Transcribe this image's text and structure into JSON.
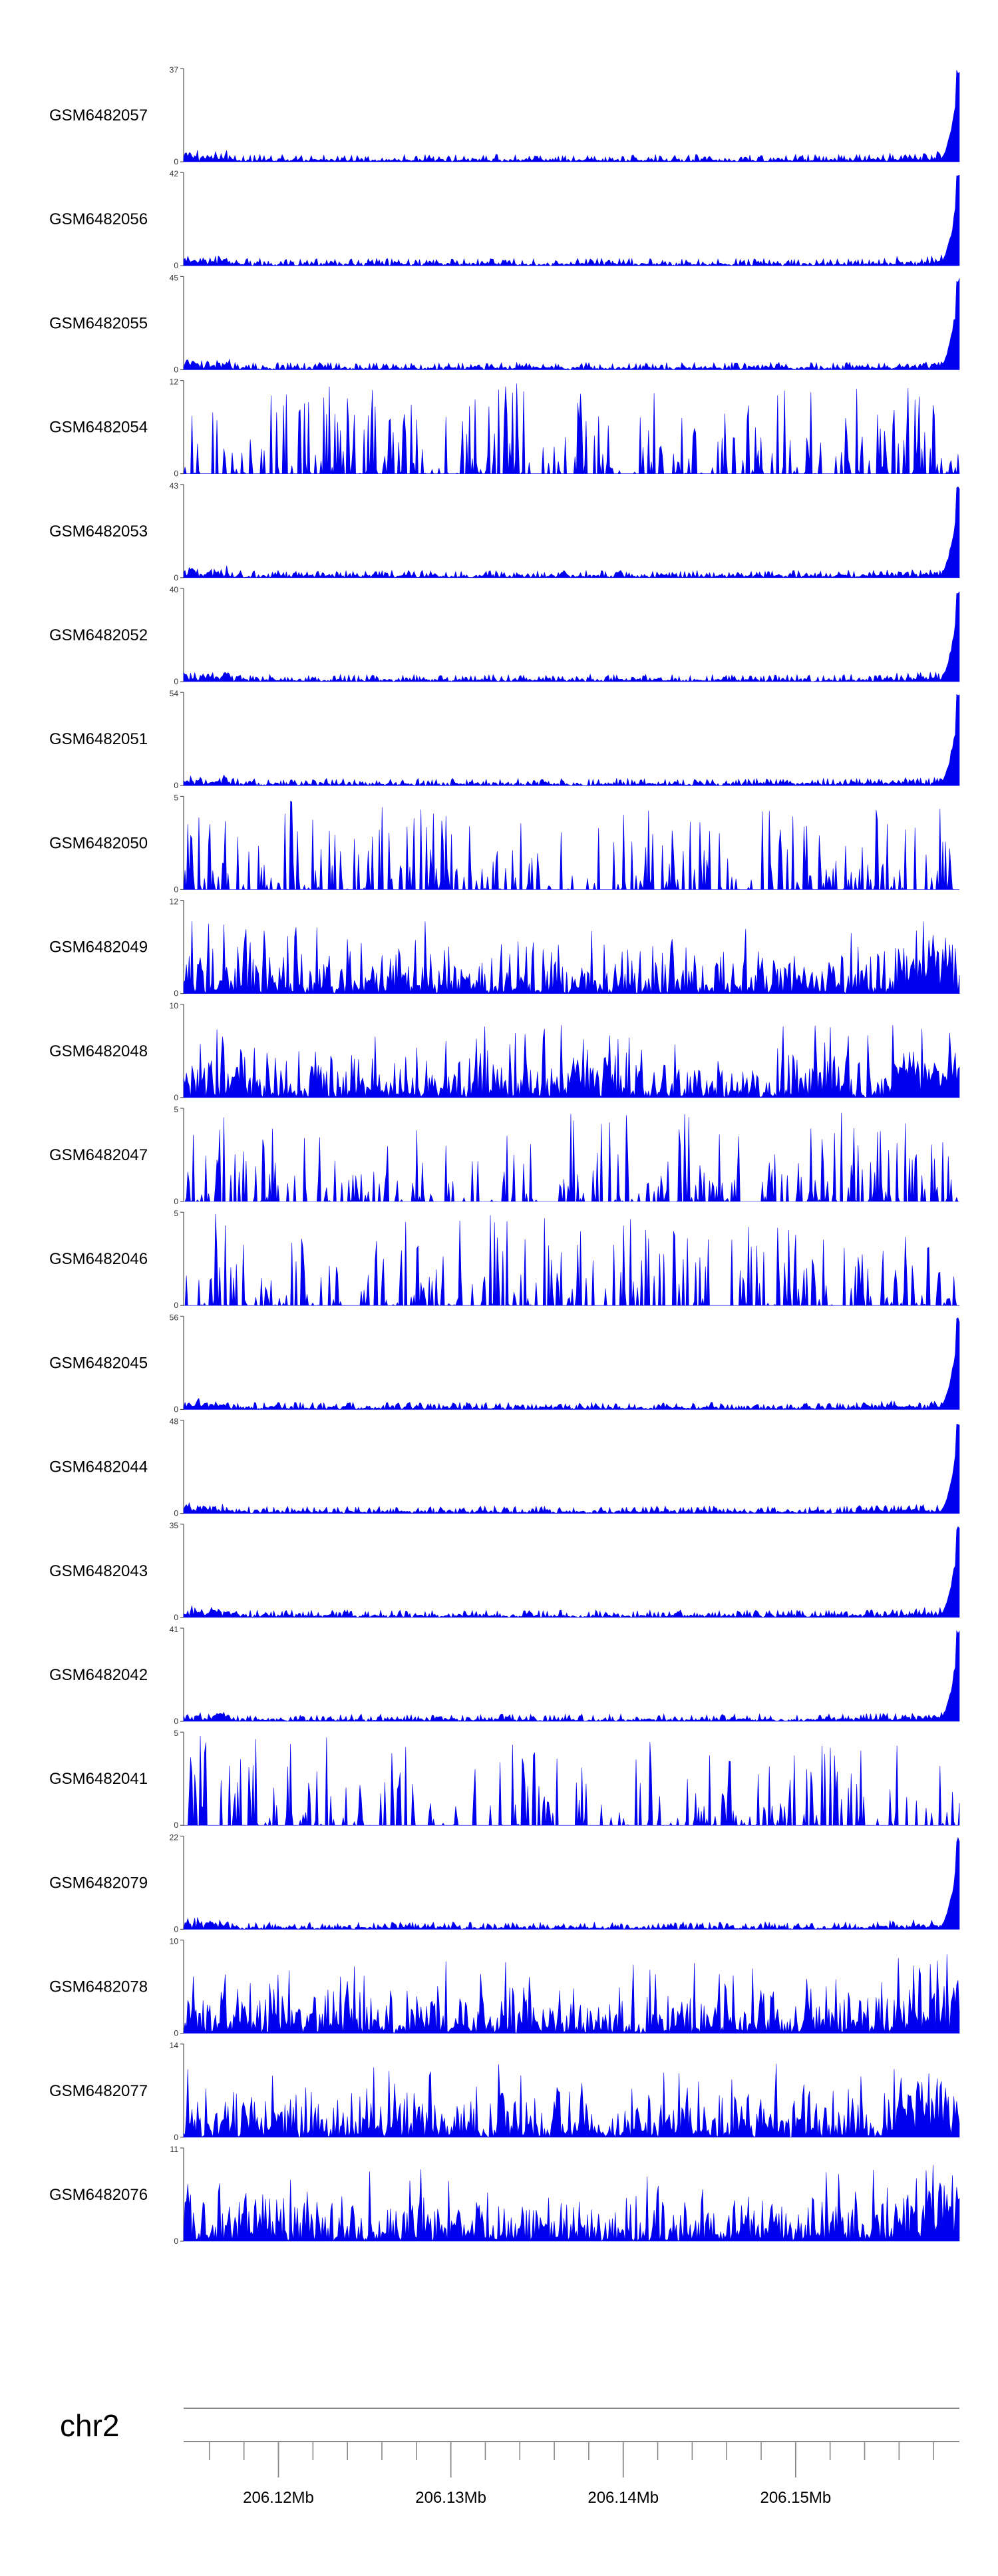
{
  "chart_data": {
    "type": "area",
    "color": "#0000ee",
    "axis_color": "#555555",
    "x_axis": {
      "chromosome": "chr2",
      "range_mb": [
        206.1145,
        206.1595
      ],
      "major_ticks_mb": [
        206.12,
        206.13,
        206.14,
        206.15
      ],
      "major_tick_labels": [
        "206.12Mb",
        "206.13Mb",
        "206.14Mb",
        "206.15Mb"
      ],
      "minor_tick_step_mb": 0.002
    },
    "tracks": [
      {
        "name": "GSM6482057",
        "ymax": 37,
        "ymin_label": "0",
        "profile": "peak-right"
      },
      {
        "name": "GSM6482056",
        "ymax": 42,
        "ymin_label": "0",
        "profile": "peak-right"
      },
      {
        "name": "GSM6482055",
        "ymax": 45,
        "ymin_label": "0",
        "profile": "peak-right"
      },
      {
        "name": "GSM6482054",
        "ymax": 12,
        "ymin_label": "0",
        "profile": "spiky"
      },
      {
        "name": "GSM6482053",
        "ymax": 43,
        "ymin_label": "0",
        "profile": "peak-right"
      },
      {
        "name": "GSM6482052",
        "ymax": 40,
        "ymin_label": "0",
        "profile": "peak-right"
      },
      {
        "name": "GSM6482051",
        "ymax": 54,
        "ymin_label": "0",
        "profile": "peak-right"
      },
      {
        "name": "GSM6482050",
        "ymax": 5,
        "ymin_label": "0",
        "profile": "spiky"
      },
      {
        "name": "GSM6482049",
        "ymax": 12,
        "ymin_label": "0",
        "profile": "dense"
      },
      {
        "name": "GSM6482048",
        "ymax": 10,
        "ymin_label": "0",
        "profile": "dense"
      },
      {
        "name": "GSM6482047",
        "ymax": 5,
        "ymin_label": "0",
        "profile": "spiky"
      },
      {
        "name": "GSM6482046",
        "ymax": 5,
        "ymin_label": "0",
        "profile": "spiky"
      },
      {
        "name": "GSM6482045",
        "ymax": 56,
        "ymin_label": "0",
        "profile": "peak-right"
      },
      {
        "name": "GSM6482044",
        "ymax": 48,
        "ymin_label": "0",
        "profile": "peak-right"
      },
      {
        "name": "GSM6482043",
        "ymax": 35,
        "ymin_label": "0",
        "profile": "peak-right"
      },
      {
        "name": "GSM6482042",
        "ymax": 41,
        "ymin_label": "0",
        "profile": "peak-right"
      },
      {
        "name": "GSM6482041",
        "ymax": 5,
        "ymin_label": "0",
        "profile": "spiky"
      },
      {
        "name": "GSM6482079",
        "ymax": 22,
        "ymin_label": "0",
        "profile": "peak-right"
      },
      {
        "name": "GSM6482078",
        "ymax": 10,
        "ymin_label": "0",
        "profile": "dense"
      },
      {
        "name": "GSM6482077",
        "ymax": 14,
        "ymin_label": "0",
        "profile": "dense"
      },
      {
        "name": "GSM6482076",
        "ymax": 11,
        "ymin_label": "0",
        "profile": "dense"
      }
    ]
  }
}
